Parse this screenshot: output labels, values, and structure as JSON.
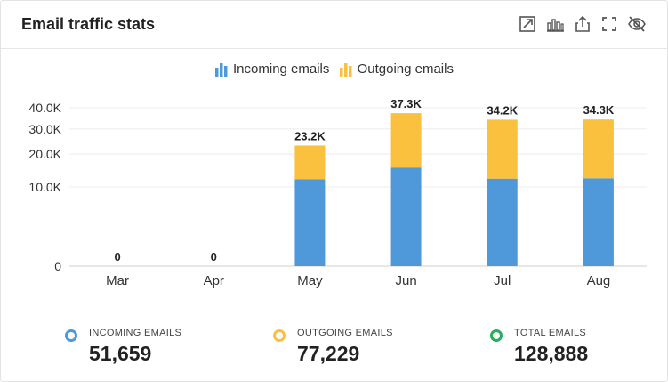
{
  "header": {
    "title": "Email traffic stats",
    "tools": [
      "expand-arrow-icon",
      "bar-chart-icon",
      "share-icon",
      "fullscreen-icon",
      "hide-eye-icon"
    ]
  },
  "legend": {
    "incoming": "Incoming emails",
    "outgoing": "Outgoing emails"
  },
  "colors": {
    "incoming": "#4f98da",
    "outgoing": "#f9c13e",
    "total": "#27ae60"
  },
  "chart_data": {
    "type": "bar",
    "stacked": true,
    "categories": [
      "Mar",
      "Apr",
      "May",
      "Jun",
      "Jul",
      "Aug"
    ],
    "series": [
      {
        "name": "Incoming emails",
        "values": [
          0,
          0,
          12000,
          15500,
          12200,
          12300
        ]
      },
      {
        "name": "Outgoing emails",
        "values": [
          0,
          0,
          11200,
          21800,
          22000,
          22000
        ]
      }
    ],
    "totals_labels": [
      "0",
      "0",
      "23.2K",
      "37.3K",
      "34.2K",
      "34.3K"
    ],
    "y_tick_labels": [
      "0",
      "10.0K",
      "20.0K",
      "30.0K",
      "40.0K"
    ],
    "y_tick_values": [
      0,
      10000,
      20000,
      30000,
      40000
    ],
    "ylim": [
      0,
      40000
    ],
    "y_scale": "sqrt",
    "grid": true,
    "legend_position": "top"
  },
  "stats": [
    {
      "label": "INCOMING EMAILS",
      "value": "51,659",
      "color": "#4f98da"
    },
    {
      "label": "OUTGOING EMAILS",
      "value": "77,229",
      "color": "#f9c13e"
    },
    {
      "label": "TOTAL EMAILS",
      "value": "128,888",
      "color": "#27ae60"
    }
  ]
}
